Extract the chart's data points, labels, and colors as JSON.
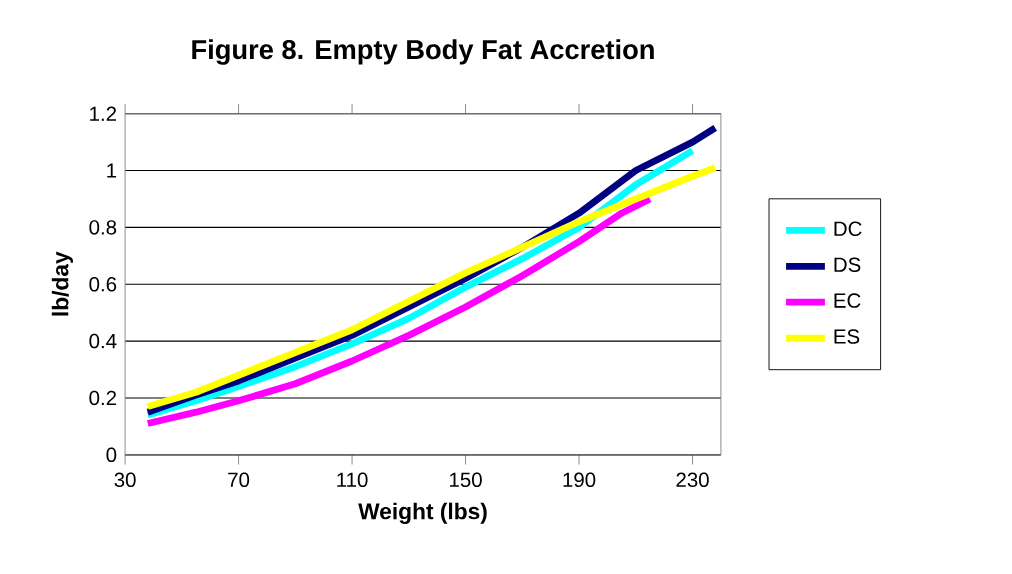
{
  "chart_data": {
    "type": "line",
    "title": "Figure 8.  Empty Body Fat Accretion",
    "xlabel": "Weight (lbs)",
    "ylabel": "lb/day",
    "xlim": [
      30,
      240
    ],
    "xticks": [
      30,
      70,
      110,
      150,
      190,
      230
    ],
    "ylim": [
      0,
      1.2
    ],
    "yticks": [
      0,
      0.2,
      0.4,
      0.6,
      0.8,
      1,
      1.2
    ],
    "grid": "y",
    "legend": "right",
    "marker": "none",
    "x": [
      38,
      55,
      70,
      90,
      110,
      130,
      150,
      170,
      190,
      210,
      230,
      238
    ],
    "series": [
      {
        "name": "DC",
        "color": "#00ffff",
        "x": [
          38,
          55,
          70,
          90,
          110,
          130,
          150,
          170,
          190,
          210,
          230
        ],
        "values": [
          0.14,
          0.19,
          0.24,
          0.31,
          0.39,
          0.48,
          0.59,
          0.69,
          0.8,
          0.95,
          1.07
        ]
      },
      {
        "name": "DS",
        "color": "#000080",
        "values": [
          0.15,
          0.21,
          0.26,
          0.34,
          0.42,
          0.52,
          0.62,
          0.73,
          0.85,
          1.0,
          1.1,
          1.15
        ]
      },
      {
        "name": "EC",
        "color": "#ff00ff",
        "x": [
          38,
          55,
          70,
          90,
          110,
          130,
          150,
          170,
          190,
          205,
          215
        ],
        "values": [
          0.11,
          0.15,
          0.19,
          0.25,
          0.33,
          0.42,
          0.52,
          0.63,
          0.75,
          0.85,
          0.9
        ]
      },
      {
        "name": "ES",
        "color": "#ffff00",
        "values": [
          0.17,
          0.22,
          0.28,
          0.36,
          0.44,
          0.54,
          0.64,
          0.73,
          0.82,
          0.9,
          0.98,
          1.01
        ]
      }
    ]
  }
}
